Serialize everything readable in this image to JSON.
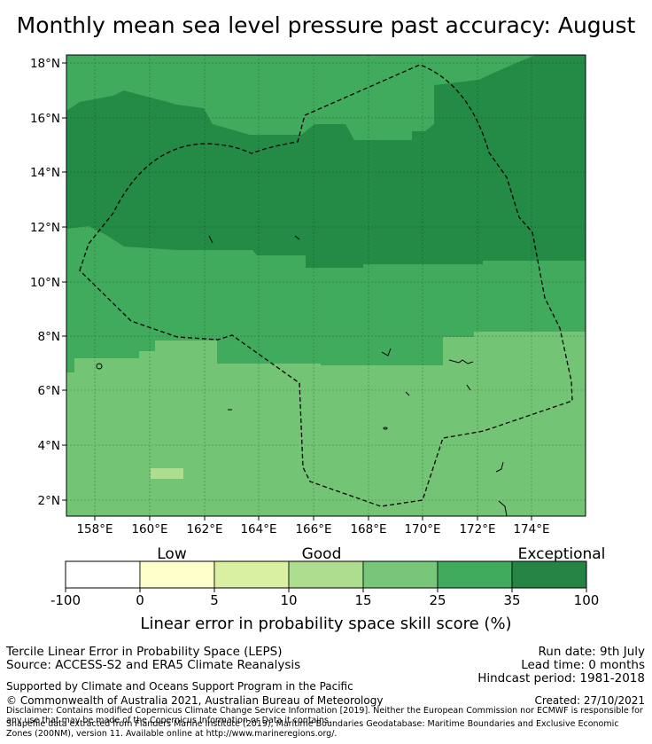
{
  "title": "Monthly mean sea level pressure past accuracy: August",
  "map": {
    "lat_labels": [
      "18°N",
      "16°N",
      "14°N",
      "12°N",
      "10°N",
      "8°N",
      "6°N",
      "4°N",
      "2°N"
    ],
    "lon_labels": [
      "158°E",
      "160°E",
      "162°E",
      "164°E",
      "166°E",
      "168°E",
      "170°E",
      "172°E",
      "174°E"
    ],
    "colors": {
      "bin_15_25": "#74c476",
      "bin_25_35": "#41ab5d",
      "bin_35_100": "#238b45",
      "bin_10_15": "#aedd8f"
    }
  },
  "legend": {
    "labels": [
      "Low",
      "Good",
      "Exceptional"
    ],
    "ticks": [
      "-100",
      "0",
      "5",
      "10",
      "15",
      "25",
      "35",
      "100"
    ],
    "colors": [
      "#ffffff",
      "#ffffcc",
      "#d9f0a3",
      "#addd8e",
      "#78c679",
      "#41ab5d",
      "#238443"
    ],
    "caption": "Linear error in probability space skill score (%)"
  },
  "footer": {
    "line1": "Tercile Linear Error in Probability Space (LEPS)",
    "line2": "Source: ACCESS-S2 and ERA5 Climate Reanalysis",
    "run_date": "Run date: 9th July",
    "lead_time": "Lead time: 0 months",
    "hindcast": "Hindcast period: 1981-2018",
    "supported": "Supported by Climate and Oceans Support Program in the Pacific",
    "copyright": "© Commonwealth of Australia 2021, Australian Bureau of Meteorology",
    "created": "Created: 27/10/2021",
    "disclaimer": "Disclaimer: Contains modified Copernicus Climate Change Service Information [2019]. Neither the European Commission nor ECMWF is responsible for any use that may be made of the Copernicus Information or Data it contains.",
    "shapefile": "Shapefile data extracted from Flanders Marine Institute (2019), Maritime Boundaries Geodatabase: Maritime Boundaries and Exclusive Economic Zones (200NM), version 11. Available online at http://www.marineregions.org/."
  }
}
